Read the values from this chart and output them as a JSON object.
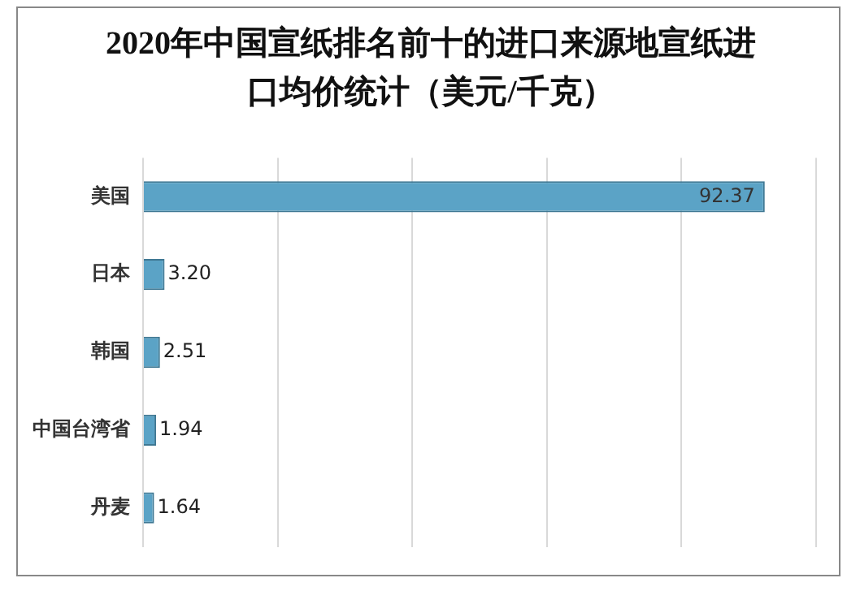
{
  "chart_data": {
    "type": "bar",
    "orientation": "horizontal",
    "title": "2020年中国宣纸排名前十的进口来源地宣纸进口均价统计（美元/千克）",
    "categories": [
      "美国",
      "日本",
      "韩国",
      "中国台湾省",
      "丹麦"
    ],
    "values": [
      92.37,
      3.2,
      2.51,
      1.94,
      1.64
    ],
    "value_labels": [
      "92.37",
      "3.20",
      "2.51",
      "1.94",
      "1.64"
    ],
    "color": "#5ba3c6",
    "xlim": [
      0,
      100
    ],
    "xticks": [
      {
        "value": 0,
        "label": null
      },
      {
        "value": 20,
        "label": null
      },
      {
        "value": 40,
        "label": null
      },
      {
        "value": 60,
        "label": null
      },
      {
        "value": 80,
        "label": null
      },
      {
        "value": 100,
        "label": null
      }
    ],
    "grid": "x",
    "tick_labels": "y",
    "legend": false
  }
}
